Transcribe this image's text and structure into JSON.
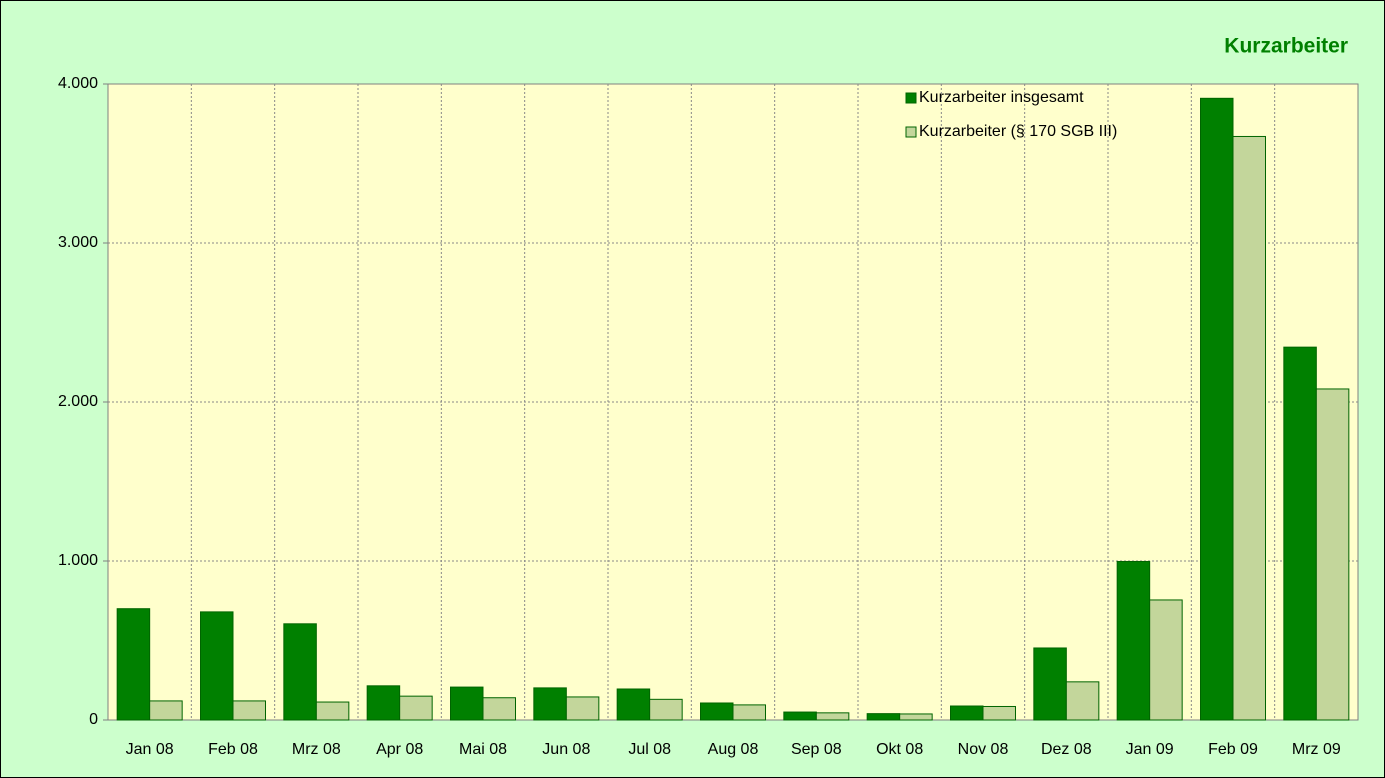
{
  "chart_data": {
    "type": "bar",
    "title": "Kurzarbeiter",
    "categories": [
      "Jan 08",
      "Feb 08",
      "Mrz 08",
      "Apr 08",
      "Mai 08",
      "Jun 08",
      "Jul 08",
      "Aug 08",
      "Sep 08",
      "Okt 08",
      "Nov 08",
      "Dez 08",
      "Jan 09",
      "Feb 09",
      "Mrz 09"
    ],
    "series": [
      {
        "name": "Kurzarbeiter insgesamt",
        "color": "#008000",
        "values": [
          700,
          680,
          605,
          215,
          207,
          202,
          195,
          107,
          50,
          40,
          88,
          453,
          997,
          3910,
          2345
        ]
      },
      {
        "name": "Kurzarbeiter (§ 170 SGB III)",
        "color": "#c3d69b",
        "values": [
          120,
          120,
          113,
          150,
          140,
          145,
          130,
          95,
          45,
          38,
          85,
          240,
          755,
          3670,
          2082
        ]
      }
    ],
    "ylim": [
      0,
      4000
    ],
    "yticks": [
      0,
      {
        "value": 1000,
        "label": "1.000"
      },
      {
        "value": 2000,
        "label": "2.000"
      },
      {
        "value": 3000,
        "label": "3.000"
      },
      {
        "value": 4000,
        "label": "4.000"
      }
    ],
    "grid": true,
    "legend": "top-right"
  }
}
